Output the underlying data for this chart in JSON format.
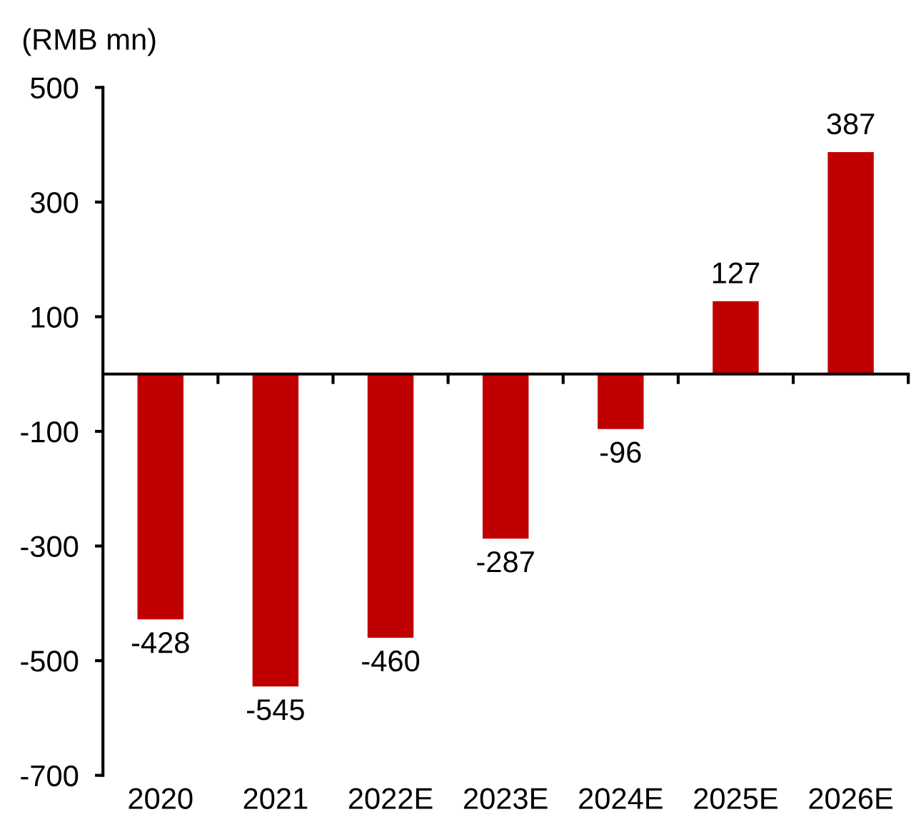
{
  "chart_data": {
    "type": "bar",
    "ylabel": "(RMB mn)",
    "categories": [
      "2020",
      "2021",
      "2022E",
      "2023E",
      "2024E",
      "2025E",
      "2026E"
    ],
    "values": [
      -428,
      -545,
      -460,
      -287,
      -96,
      127,
      387
    ],
    "color": "#c00000",
    "ylim": [
      -700,
      500
    ],
    "yticks": [
      -700,
      -500,
      -300,
      -100,
      100,
      300,
      500
    ],
    "data_labels": true
  }
}
